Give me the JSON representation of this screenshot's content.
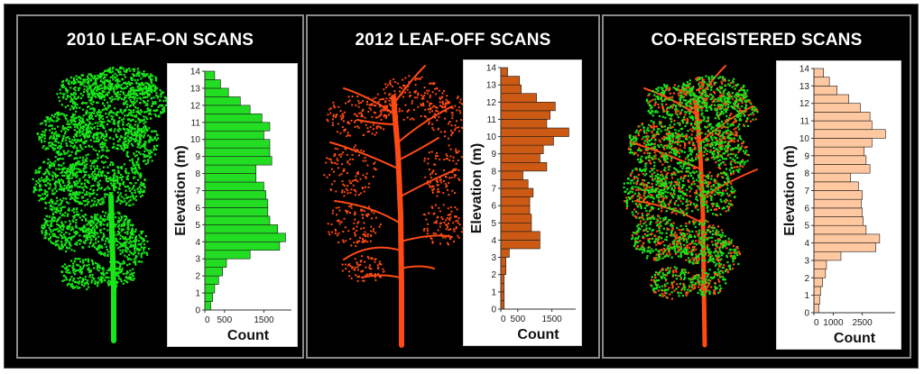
{
  "panels": [
    {
      "title": "2010 LEAF-ON SCANS",
      "tree_color": "#19e619"
    },
    {
      "title": "2012 LEAF-OFF SCANS",
      "tree_color": "#ff4a14"
    },
    {
      "title": "CO-REGISTERED SCANS",
      "tree_color": "#19e619",
      "tree_color_secondary": "#ff4a14"
    }
  ],
  "chart_data": [
    {
      "type": "bar",
      "orientation": "horizontal",
      "title": "",
      "xlabel": "Count",
      "ylabel": "Elevation (m)",
      "bin_edges": [
        0,
        0.5,
        1,
        1.5,
        2,
        2.5,
        3,
        3.5,
        4,
        4.5,
        5,
        5.5,
        6,
        6.5,
        7,
        7.5,
        8,
        8.5,
        9,
        9.5,
        10,
        10.5,
        11,
        11.5,
        12,
        12.5,
        13,
        13.5
      ],
      "values": [
        150,
        200,
        250,
        350,
        450,
        550,
        1150,
        1900,
        2050,
        1850,
        1650,
        1600,
        1600,
        1550,
        1500,
        1300,
        1300,
        1700,
        1650,
        1650,
        1500,
        1650,
        1450,
        1150,
        900,
        600,
        400,
        250
      ],
      "xlim": [
        0,
        2200
      ],
      "xticks": [
        "0",
        "500",
        "1500"
      ],
      "ylim": [
        0,
        14
      ],
      "yticks": [
        "0",
        "1",
        "2",
        "3",
        "4",
        "5",
        "6",
        "7",
        "8",
        "9",
        "10",
        "11",
        "12",
        "13",
        "14"
      ],
      "bar_color": "#22dd22",
      "bar_edge": "#1a1a1a"
    },
    {
      "type": "bar",
      "orientation": "horizontal",
      "title": "",
      "xlabel": "Count",
      "ylabel": "Elevation (m)",
      "bin_edges": [
        0,
        0.5,
        1,
        1.5,
        2,
        2.5,
        3,
        3.5,
        4,
        4.5,
        5,
        5.5,
        6,
        6.5,
        7,
        7.5,
        8,
        8.5,
        9,
        9.5,
        10,
        10.5,
        11,
        11.5,
        12,
        12.5,
        13,
        13.5
      ],
      "values": [
        100,
        100,
        100,
        100,
        150,
        150,
        250,
        1150,
        1150,
        900,
        900,
        850,
        850,
        950,
        800,
        650,
        1350,
        1150,
        1250,
        1550,
        2000,
        1350,
        1450,
        1600,
        1050,
        600,
        550,
        200
      ],
      "xlim": [
        0,
        2200
      ],
      "xticks": [
        "0",
        "500",
        "1500"
      ],
      "ylim": [
        0,
        14
      ],
      "yticks": [
        "0",
        "1",
        "2",
        "3",
        "4",
        "5",
        "6",
        "7",
        "8",
        "9",
        "10",
        "11",
        "12",
        "13",
        "14"
      ],
      "bar_color": "#cc5a14",
      "bar_edge": "#1a1a1a"
    },
    {
      "type": "bar",
      "orientation": "horizontal",
      "title": "",
      "xlabel": "Count",
      "ylabel": "Elevation (m)",
      "bin_edges": [
        0,
        0.5,
        1,
        1.5,
        2,
        2.5,
        3,
        3.5,
        4,
        4.5,
        5,
        5.5,
        6,
        6.5,
        7,
        7.5,
        8,
        8.5,
        9,
        9.5,
        10,
        10.5,
        11,
        11.5,
        12,
        12.5,
        13,
        13.5
      ],
      "values": [
        250,
        300,
        350,
        450,
        600,
        650,
        1400,
        3200,
        3400,
        2700,
        2550,
        2500,
        2450,
        2500,
        2300,
        1900,
        2900,
        2700,
        2600,
        3000,
        3700,
        3000,
        2900,
        2400,
        1800,
        1200,
        800,
        500
      ],
      "xlim": [
        0,
        4200
      ],
      "xticks": [
        "0",
        "1000",
        "2500"
      ],
      "ylim": [
        0,
        14
      ],
      "yticks": [
        "0",
        "1",
        "2",
        "3",
        "4",
        "5",
        "6",
        "7",
        "8",
        "9",
        "10",
        "11",
        "12",
        "13",
        "14"
      ],
      "bar_color": "#ffc8a0",
      "bar_edge": "#1a1a1a"
    }
  ]
}
